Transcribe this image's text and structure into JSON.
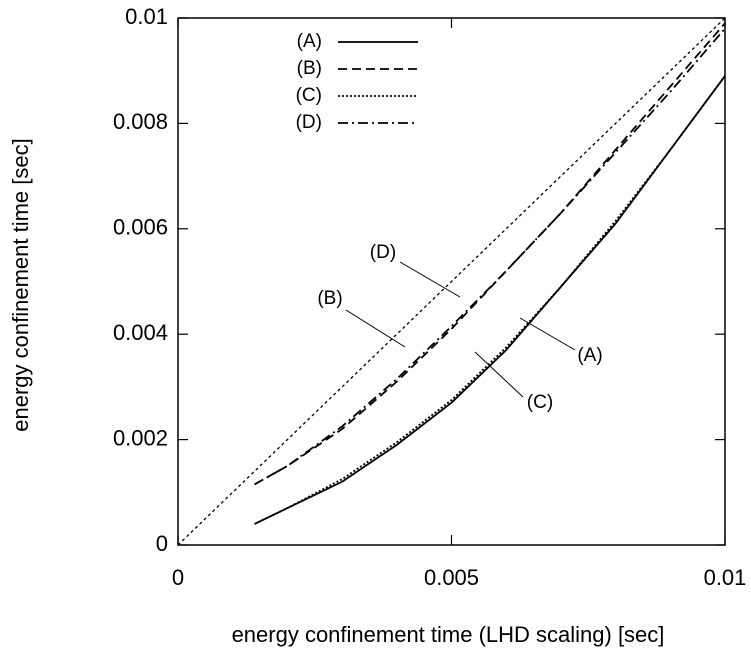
{
  "chart_data": {
    "type": "line",
    "x_label": "energy confinement time (LHD scaling) [sec]",
    "y_label": "energy confinement time  [sec]",
    "x": [
      0.0014,
      0.002,
      0.003,
      0.004,
      0.005,
      0.006,
      0.007,
      0.008,
      0.009,
      0.01
    ],
    "series": [
      {
        "name": "(A)",
        "color": "#000000",
        "style": "solid",
        "values": [
          0.0004,
          0.0007,
          0.0012,
          0.0019,
          0.0027,
          0.0037,
          0.0049,
          0.0061,
          0.0075,
          0.0089
        ]
      },
      {
        "name": "(B)",
        "color": "#000000",
        "style": "dashed",
        "values": [
          0.00115,
          0.0015,
          0.0022,
          0.0031,
          0.0041,
          0.0052,
          0.0063,
          0.0075,
          0.0087,
          0.0099
        ]
      },
      {
        "name": "(C)",
        "color": "#000000",
        "style": "dotted",
        "values": [
          0.0004,
          0.0007,
          0.00125,
          0.00195,
          0.00275,
          0.00375,
          0.0049,
          0.00615,
          0.0075,
          0.0089
        ]
      },
      {
        "name": "(D)",
        "color": "#000000",
        "style": "dash-dot",
        "values": [
          0.00115,
          0.0015,
          0.00225,
          0.00315,
          0.00415,
          0.0052,
          0.0063,
          0.00745,
          0.0086,
          0.0098
        ]
      },
      {
        "color": "#000000",
        "style": "fine-dotted",
        "x": [
          0,
          0.01
        ],
        "values": [
          0,
          0.01
        ]
      }
    ],
    "annotations": [
      "(D)",
      "(B)",
      "(A)",
      "(C)"
    ],
    "xlim": [
      0,
      0.01
    ],
    "ylim": [
      0,
      0.01
    ],
    "xticks": [
      0,
      0.005,
      0.01
    ],
    "yticks": [
      0,
      0.002,
      0.004,
      0.006,
      0.008,
      0.01
    ],
    "grid": false
  }
}
